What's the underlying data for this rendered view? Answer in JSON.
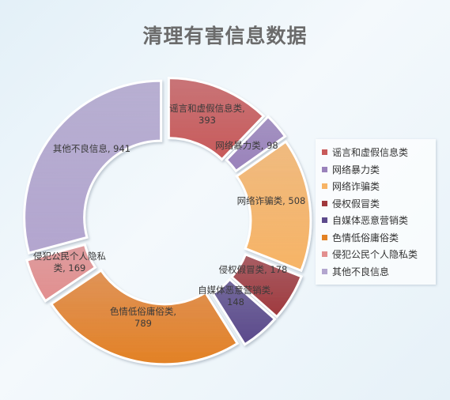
{
  "chart_data": {
    "type": "pie",
    "style": "donut",
    "title": "清理有害信息数据",
    "series": [
      {
        "name": "谣言和虚假信息类",
        "value": 393,
        "color": "#c85a5a",
        "label": [
          "谣言和虚假信息类,",
          "393"
        ]
      },
      {
        "name": "网络暴力类",
        "value": 98,
        "color": "#9a82bb",
        "label": [
          "网络暴力类, 98"
        ]
      },
      {
        "name": "网络诈骗类",
        "value": 508,
        "color": "#f7b466",
        "label": [
          "网络诈骗类, 508"
        ]
      },
      {
        "name": "侵权假冒类",
        "value": 178,
        "color": "#a0393d",
        "label": [
          "侵权假冒类, 178"
        ]
      },
      {
        "name": "自媒体恶意营销类",
        "value": 148,
        "color": "#5c4a8c",
        "label": [
          "自媒体恶意营销类,",
          "148"
        ]
      },
      {
        "name": "色情低俗庸俗类",
        "value": 789,
        "color": "#e38224",
        "label": [
          "色情低俗庸俗类,",
          "789"
        ]
      },
      {
        "name": "侵犯公民个人隐私类",
        "value": 169,
        "color": "#e28f8f",
        "label": [
          "侵犯公民个人隐私",
          "类, 169"
        ]
      },
      {
        "name": "其他不良信息",
        "value": 941,
        "color": "#b3a6cf",
        "label": [
          "其他不良信息, 941"
        ]
      }
    ],
    "legend_position": "right"
  }
}
